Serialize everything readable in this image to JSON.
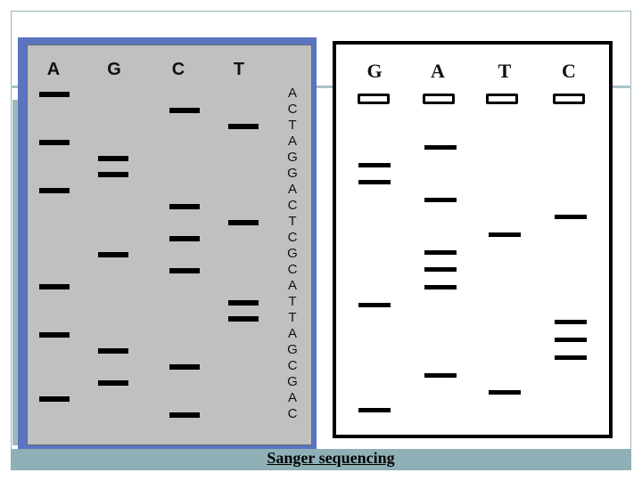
{
  "caption": "Sanger sequencing",
  "sequence": [
    "A",
    "C",
    "T",
    "A",
    "G",
    "G",
    "A",
    "C",
    "T",
    "C",
    "G",
    "C",
    "A",
    "T",
    "T",
    "A",
    "G",
    "C",
    "G",
    "A",
    "C"
  ],
  "left_gel": {
    "lanes": [
      {
        "label": "A",
        "band_positions": [
          1,
          4,
          7,
          13,
          16,
          20
        ]
      },
      {
        "label": "G",
        "band_positions": [
          5,
          6,
          11,
          17,
          19
        ]
      },
      {
        "label": "C",
        "band_positions": [
          2,
          8,
          10,
          12,
          18,
          21
        ]
      },
      {
        "label": "T",
        "band_positions": [
          3,
          9,
          14,
          15
        ]
      }
    ]
  },
  "right_gel": {
    "lanes": [
      {
        "label": "G"
      },
      {
        "label": "A"
      },
      {
        "label": "T"
      },
      {
        "label": "C"
      }
    ]
  }
}
